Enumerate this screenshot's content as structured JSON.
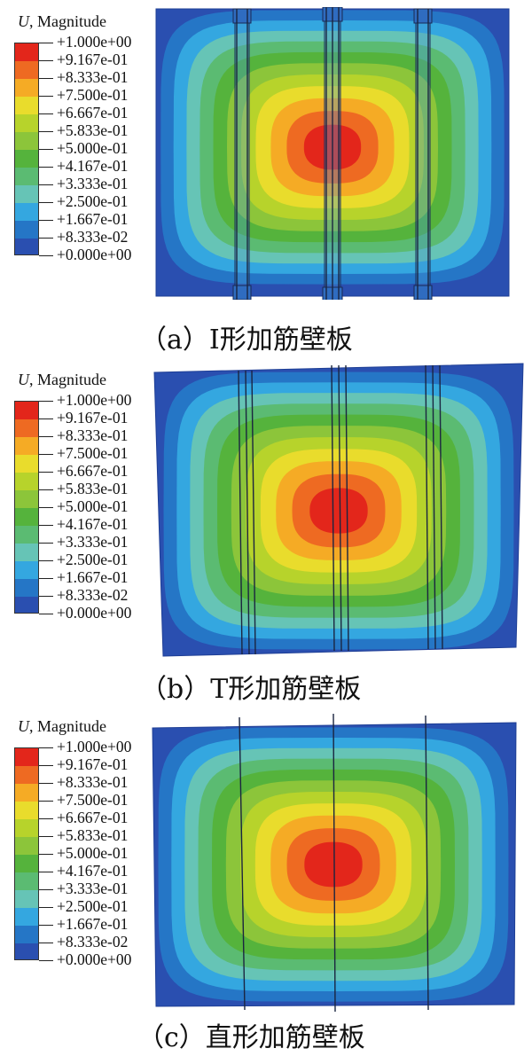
{
  "legend": {
    "title_var": "U",
    "title_rest": ", Magnitude",
    "labels": [
      "+1.000e+00",
      "+9.167e-01",
      "+8.333e-01",
      "+7.500e-01",
      "+6.667e-01",
      "+5.833e-01",
      "+5.000e-01",
      "+4.167e-01",
      "+3.333e-01",
      "+2.500e-01",
      "+1.667e-01",
      "+8.333e-02",
      "+0.000e+00"
    ],
    "colors": [
      "#e3261b",
      "#ee6a22",
      "#f5ab25",
      "#e9dc2c",
      "#b7d32b",
      "#8cc53a",
      "#55b33c",
      "#5bbb72",
      "#66c4b6",
      "#34a7e0",
      "#2576c6",
      "#2a4fb0"
    ]
  },
  "panels": [
    {
      "caption": "（a）I形加筋壁板"
    },
    {
      "caption": "（b）T形加筋壁板"
    },
    {
      "caption": "（c）直形加筋壁板"
    }
  ]
}
